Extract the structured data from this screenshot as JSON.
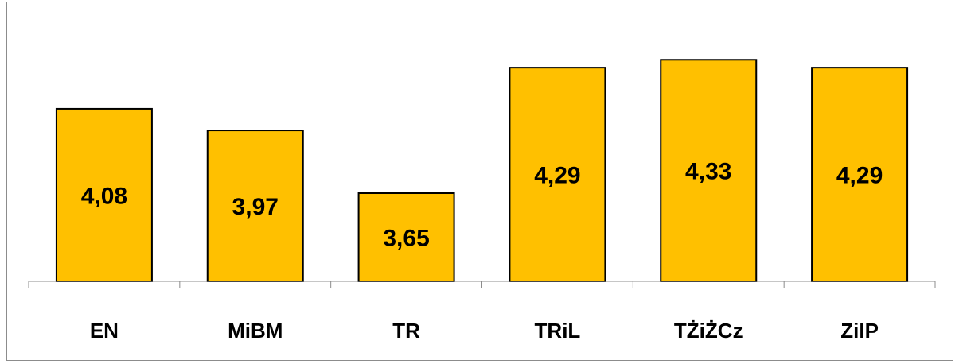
{
  "chart_data": {
    "type": "bar",
    "categories": [
      "EN",
      "MiBM",
      "TR",
      "TRiL",
      "TŻiŻCz",
      "ZiIP"
    ],
    "values": [
      4.08,
      3.97,
      3.65,
      4.29,
      4.33,
      4.29
    ],
    "value_labels": [
      "4,08",
      "3,97",
      "3,65",
      "4,29",
      "4,33",
      "4,29"
    ],
    "title": "",
    "xlabel": "",
    "ylabel": "",
    "ylim": [
      3.2,
      4.4
    ],
    "grid": false,
    "legend": "none",
    "bar_color": "#FFC000",
    "bar_border_color": "#000000",
    "axis_color": "#8C8C8C"
  }
}
